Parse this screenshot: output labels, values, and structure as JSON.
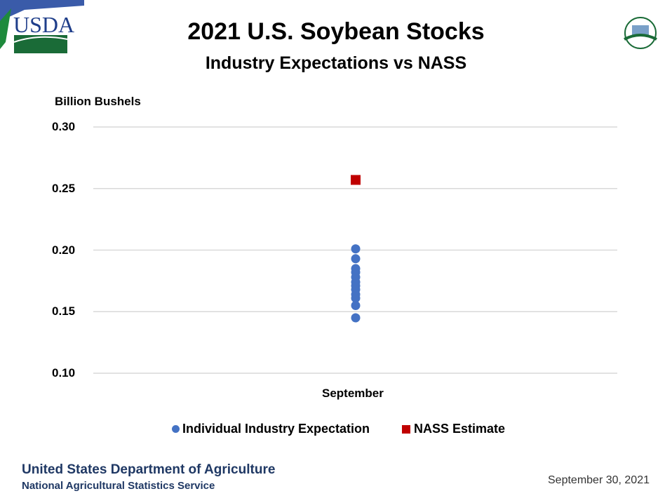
{
  "header": {
    "logo_left": "USDA",
    "logo_right": "AGRICULTURE COUNTS"
  },
  "chart_data": {
    "type": "scatter",
    "title": "2021 U.S. Soybean Stocks",
    "subtitle": "Industry Expectations vs NASS",
    "ylabel": "Billion Bushels",
    "xlabel": "",
    "categories": [
      "September"
    ],
    "ylim": [
      0.1,
      0.3
    ],
    "yticks": [
      "0.30",
      "0.25",
      "0.20",
      "0.15",
      "0.10"
    ],
    "grid": true,
    "legend_position": "bottom",
    "series": [
      {
        "name": "Individual Industry Expectation",
        "marker": "circle",
        "color": "#4472c4",
        "values": [
          0.201,
          0.193,
          0.185,
          0.182,
          0.178,
          0.174,
          0.171,
          0.168,
          0.164,
          0.161,
          0.155,
          0.145
        ]
      },
      {
        "name": "NASS Estimate",
        "marker": "square",
        "color": "#c00000",
        "values": [
          0.257
        ]
      }
    ]
  },
  "footer": {
    "org": "United States Department of Agriculture",
    "agency": "National Agricultural Statistics Service",
    "date": "September 30, 2021"
  }
}
